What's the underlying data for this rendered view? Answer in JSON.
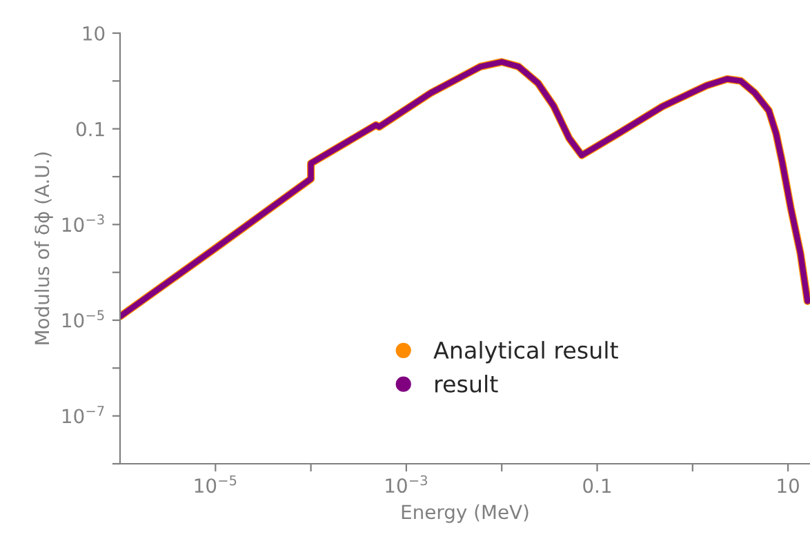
{
  "chart_data": {
    "type": "line",
    "xlabel": "Energy (MeV)",
    "ylabel": "Modulus of δϕ (A.U.)",
    "log": "xy",
    "x": [
      1e-06,
      1e-05,
      0.0001,
      0.0001,
      0.00048,
      0.00052,
      0.0018,
      0.004,
      0.006,
      0.01,
      0.015,
      0.024,
      0.035,
      0.051,
      0.069,
      0.16,
      0.48,
      1.4,
      2.3,
      3.2,
      4.5,
      6.3,
      7.5,
      8.7,
      10.7,
      13.5,
      16
    ],
    "series": [
      {
        "name": "Analytical result",
        "color": "#ff8c00",
        "values": [
          1.2e-05,
          0.00032,
          0.009,
          0.019,
          0.12,
          0.11,
          0.56,
          1.3,
          2.0,
          2.5,
          2.0,
          0.9,
          0.3,
          0.063,
          0.028,
          0.076,
          0.29,
          0.8,
          1.1,
          1.0,
          0.56,
          0.24,
          0.08,
          0.02,
          0.0022,
          0.00025,
          2.5e-05
        ]
      },
      {
        "name": "result",
        "color": "#800080",
        "values": [
          1.2e-05,
          0.00032,
          0.009,
          0.019,
          0.12,
          0.11,
          0.56,
          1.3,
          2.0,
          2.5,
          2.0,
          0.9,
          0.3,
          0.063,
          0.028,
          0.076,
          0.29,
          0.8,
          1.1,
          1.0,
          0.56,
          0.24,
          0.08,
          0.02,
          0.0022,
          0.00025,
          2.5e-05
        ]
      }
    ],
    "xlim": [
      1e-06,
      17
    ],
    "ylim": [
      1e-08,
      10
    ],
    "xticks": [
      {
        "value": 1e-05,
        "label": "10$^{−5}$"
      },
      {
        "value": 0.0001,
        "label": null
      },
      {
        "value": 0.001,
        "label": "10$^{−3}$"
      },
      {
        "value": 0.01,
        "label": null
      },
      {
        "value": 0.1,
        "label": "0.1"
      },
      {
        "value": 1,
        "label": null
      },
      {
        "value": 10,
        "label": "10"
      }
    ],
    "yticks": [
      {
        "value": 1e-08,
        "label": null
      },
      {
        "value": 1e-07,
        "label": "10$^{−7}$"
      },
      {
        "value": 1e-06,
        "label": null
      },
      {
        "value": 1e-05,
        "label": "10$^{−5}$"
      },
      {
        "value": 0.0001,
        "label": null
      },
      {
        "value": 0.001,
        "label": "10$^{−3}$"
      },
      {
        "value": 0.01,
        "label": null
      },
      {
        "value": 0.1,
        "label": "0.1"
      },
      {
        "value": 1,
        "label": null
      },
      {
        "value": 10,
        "label": "10"
      }
    ],
    "legend": "center",
    "grid": false
  }
}
